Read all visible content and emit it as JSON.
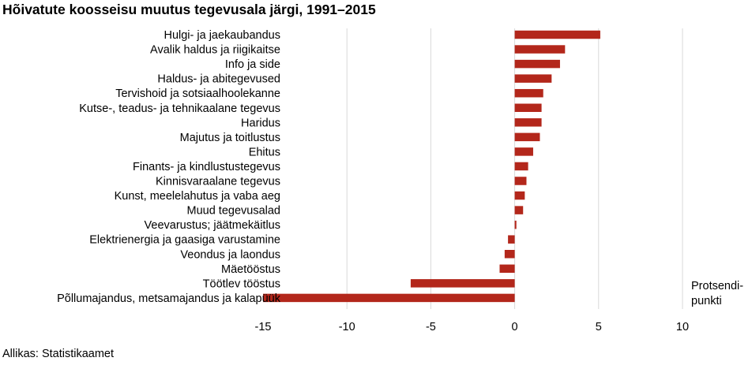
{
  "chart_data": {
    "type": "bar",
    "orientation": "horizontal",
    "title": "Hõivatute koosseisu muutus tegevusala järgi, 1991–2015",
    "unit_label": "Protsendi-punkti",
    "source": "Allikas: Statistikaamet",
    "xlim": [
      -15,
      10
    ],
    "xticks": [
      -15,
      -10,
      -5,
      0,
      5,
      10
    ],
    "grid": true,
    "bar_color": "#b3271b",
    "categories": [
      "Hulgi- ja jaekaubandus",
      "Avalik haldus ja riigikaitse",
      "Info ja side",
      "Haldus- ja abitegevused",
      "Tervishoid ja sotsiaalhoolekanne",
      "Kutse-, teadus- ja tehnikaalane tegevus",
      "Haridus",
      "Majutus ja toitlustus",
      "Ehitus",
      "Finants- ja kindlustustegevus",
      "Kinnisvaraalane tegevus",
      "Kunst, meelelahutus ja vaba aeg",
      "Muud tegevusalad",
      "Veevarustus; jäätmekäitlus",
      "Elektrienergia ja gaasiga varustamine",
      "Veondus ja laondus",
      "Mäetööstus",
      "Töötlev tööstus",
      "Põllumajandus, metsamajandus ja kalapüük"
    ],
    "values": [
      5.1,
      3.0,
      2.7,
      2.2,
      1.7,
      1.6,
      1.6,
      1.5,
      1.1,
      0.8,
      0.7,
      0.6,
      0.5,
      0.1,
      -0.4,
      -0.6,
      -0.9,
      -6.2,
      -15.0
    ]
  }
}
